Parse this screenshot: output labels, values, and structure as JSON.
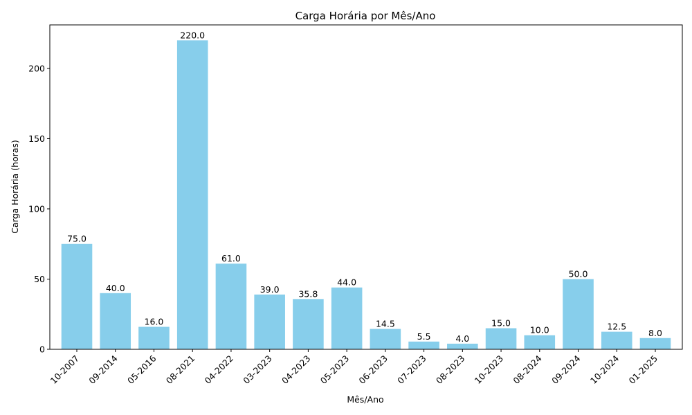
{
  "chart_data": {
    "type": "bar",
    "title": "Carga Horária por Mês/Ano",
    "xlabel": "Mês/Ano",
    "ylabel": "Carga Horária (horas)",
    "categories": [
      "10-2007",
      "09-2014",
      "05-2016",
      "08-2021",
      "04-2022",
      "03-2023",
      "04-2023",
      "05-2023",
      "06-2023",
      "07-2023",
      "08-2023",
      "10-2023",
      "08-2024",
      "09-2024",
      "10-2024",
      "01-2025"
    ],
    "values": [
      75.0,
      40.0,
      16.0,
      220.0,
      61.0,
      39.0,
      35.8,
      44.0,
      14.5,
      5.5,
      4.0,
      15.0,
      10.0,
      50.0,
      12.5,
      8.0
    ],
    "data_labels": [
      "75.0",
      "40.0",
      "16.0",
      "220.0",
      "61.0",
      "39.0",
      "35.8",
      "44.0",
      "14.5",
      "5.5",
      "4.0",
      "15.0",
      "10.0",
      "50.0",
      "12.5",
      "8.0"
    ],
    "ylim": [
      0,
      231
    ],
    "yticks": [
      0,
      50,
      100,
      150,
      200
    ],
    "grid": false,
    "bar_color": "#87CEEB"
  }
}
